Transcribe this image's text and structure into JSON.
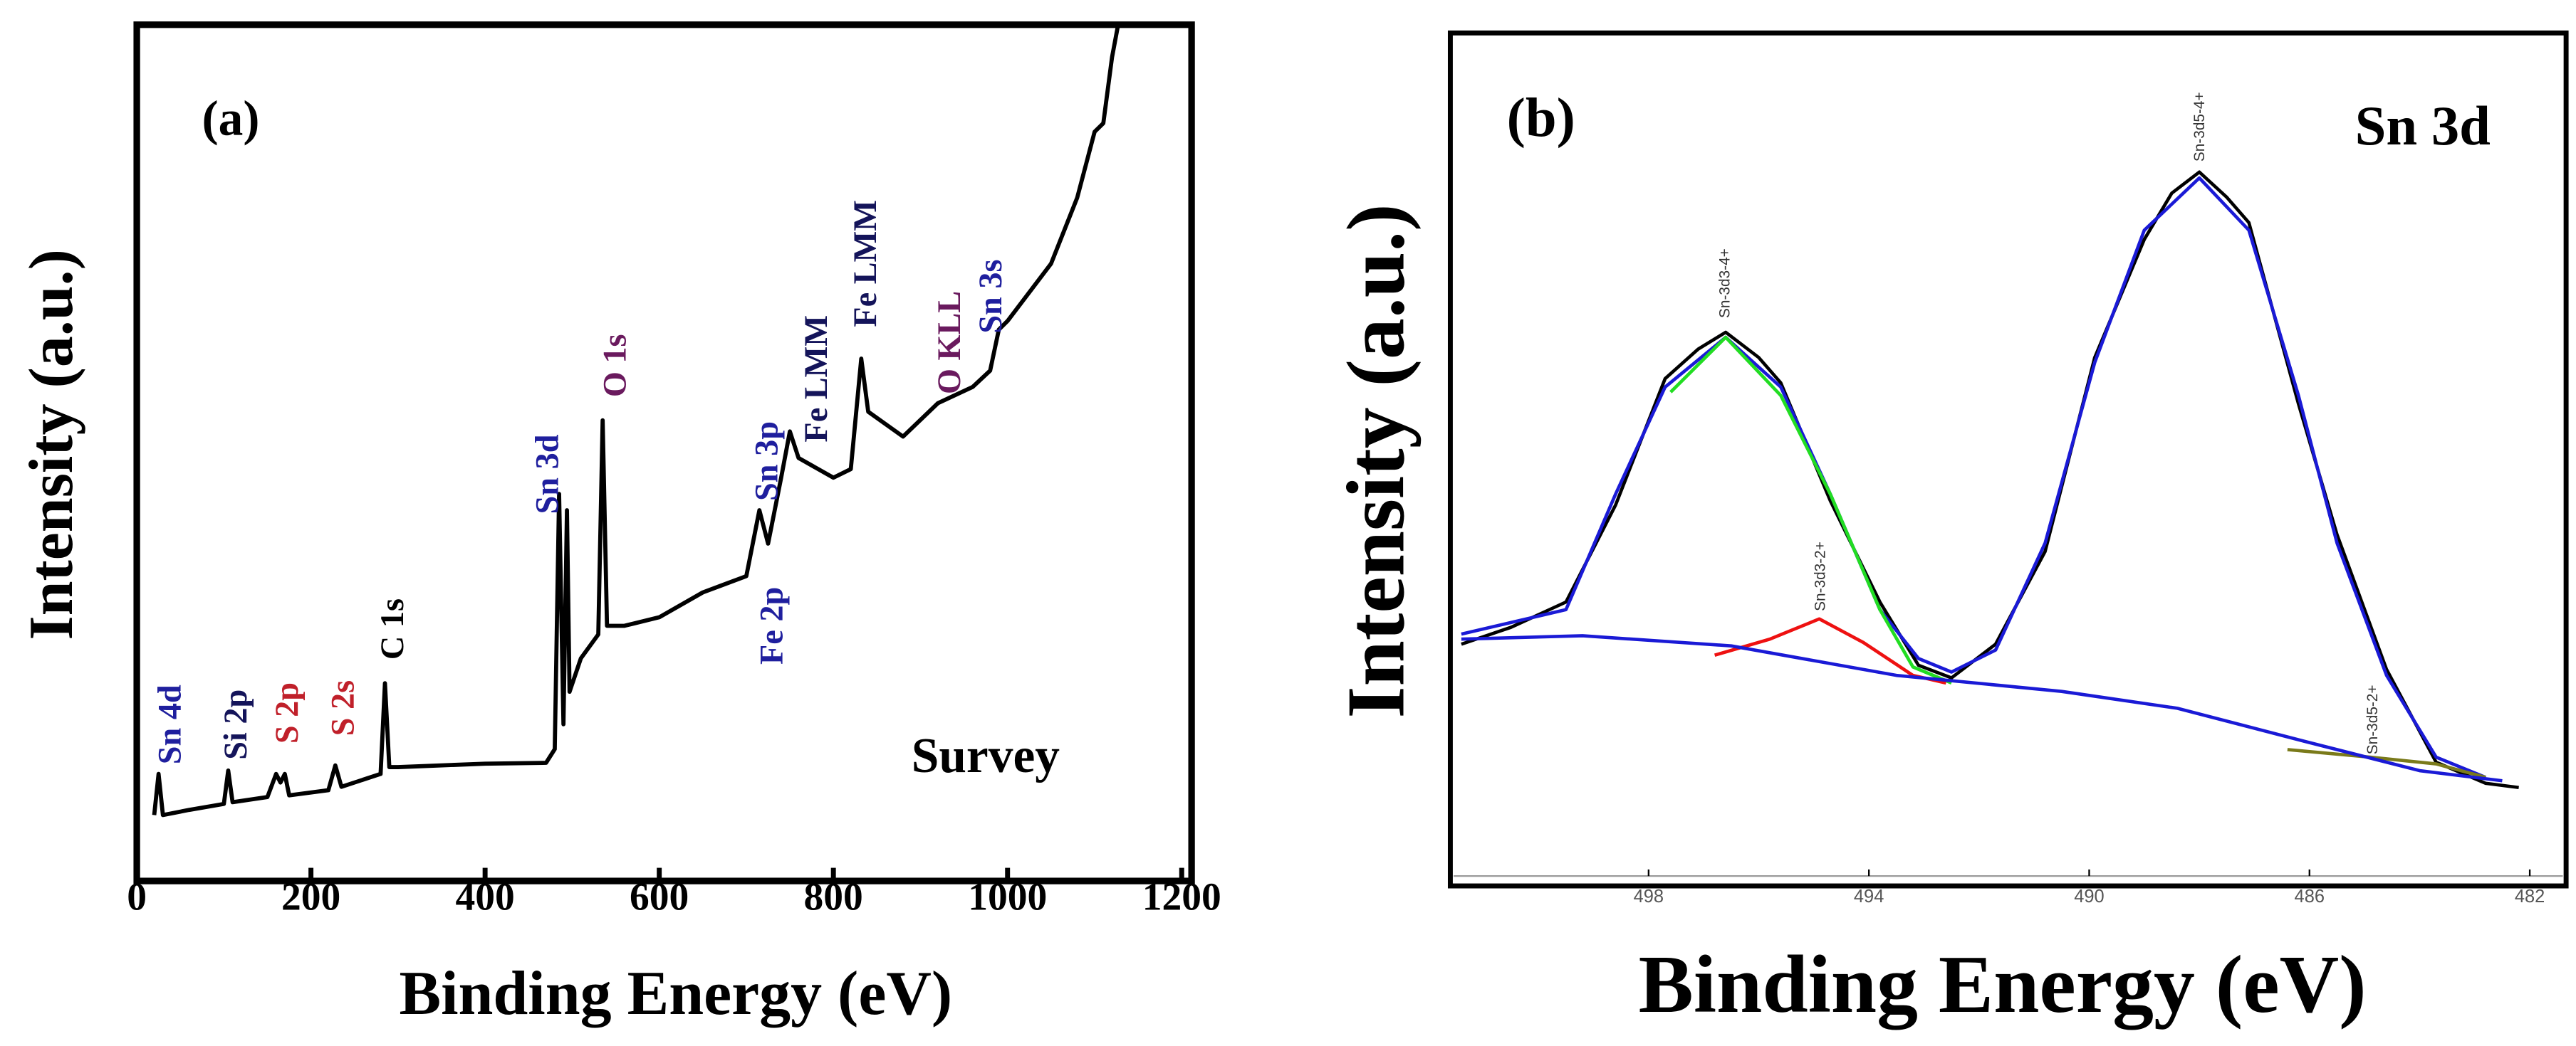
{
  "chart_data": [
    {
      "type": "line",
      "x_label": "Binding Energy (eV)",
      "y_label": "Intensity (a.u.)",
      "xlim": [
        0,
        1200
      ],
      "xticks": [
        0,
        200,
        400,
        600,
        800,
        1000,
        1200
      ],
      "ylim": [
        0,
        100
      ],
      "series": [
        {
          "color": "#000000",
          "x": [
            20,
            25,
            30,
            60,
            100,
            105,
            110,
            150,
            160,
            165,
            170,
            175,
            220,
            228,
            235,
            280,
            285,
            290,
            300,
            400,
            470,
            480,
            485,
            490,
            494,
            497,
            510,
            530,
            535,
            540,
            560,
            600,
            650,
            700,
            715,
            725,
            740,
            750,
            760,
            800,
            820,
            832,
            840,
            880,
            920,
            960,
            980,
            990,
            1000,
            1050,
            1080,
            1100,
            1110,
            1120,
            1127
          ],
          "values": [
            7.7,
            12.5,
            7.7,
            8.3,
            9.0,
            12.9,
            9.2,
            9.8,
            12.5,
            11.5,
            12.5,
            10.0,
            10.6,
            13.5,
            11.0,
            12.5,
            23.1,
            13.3,
            13.3,
            13.7,
            13.8,
            15.4,
            45.2,
            18.3,
            43.3,
            22.1,
            26.0,
            28.8,
            53.8,
            29.8,
            29.8,
            30.8,
            33.7,
            35.6,
            43.3,
            39.4,
            47.1,
            52.5,
            49.4,
            47.1,
            48.1,
            61.0,
            54.8,
            51.9,
            55.8,
            57.7,
            59.6,
            64.4,
            65.4,
            72.1,
            79.8,
            87.5,
            88.5,
            96.2,
            100
          ]
        }
      ],
      "annotations": [
        {
          "text": "(a)",
          "color": "#000000"
        },
        {
          "text": "Survey",
          "color": "#000000"
        },
        {
          "text": "Sn 4d",
          "color": "#1f1f9e"
        },
        {
          "text": "Si 2p",
          "color": "#14145a"
        },
        {
          "text": "S 2p",
          "color": "#c0202a"
        },
        {
          "text": "S 2s",
          "color": "#c0202a"
        },
        {
          "text": "C 1s",
          "color": "#000000"
        },
        {
          "text": "Sn 3d",
          "color": "#1f1f9e"
        },
        {
          "text": "O 1s",
          "color": "#6a1a5e"
        },
        {
          "text": "Sn 3p",
          "color": "#1f1f9e"
        },
        {
          "text": "Fe 2p",
          "color": "#1f1f9e"
        },
        {
          "text": "Fe LMM",
          "color": "#14145a"
        },
        {
          "text": "Fe LMM",
          "color": "#14145a"
        },
        {
          "text": "O KLL",
          "color": "#6a1a5e"
        },
        {
          "text": "Sn 3s",
          "color": "#1f1f9e"
        }
      ]
    },
    {
      "type": "line",
      "x_label": "Binding Energy (eV)",
      "y_label": "Intensity (a.u.)",
      "xlim": [
        501.6,
        481.4
      ],
      "xticks": [
        498,
        494,
        490,
        486,
        482
      ],
      "ylim": [
        0,
        100
      ],
      "series": [
        {
          "color": "#000000",
          "x": [
            501.4,
            500.5,
            499.5,
            498.6,
            497.7,
            497.1,
            496.6,
            496.0,
            495.6,
            494.7,
            493.8,
            493.1,
            492.5,
            491.7,
            490.8,
            489.9,
            489.0,
            488.5,
            488.0,
            487.5,
            487.1,
            486.2,
            485.5,
            484.6,
            483.7,
            482.8,
            482.2
          ],
          "values": [
            27.5,
            29.5,
            32.5,
            44.0,
            59.0,
            62.5,
            64.5,
            61.5,
            58.5,
            44.5,
            32.5,
            25.0,
            23.5,
            27.5,
            38.5,
            61.5,
            75.5,
            81.0,
            83.5,
            80.5,
            77.5,
            56.0,
            40.5,
            24.5,
            13.5,
            11.0,
            10.5
          ]
        },
        {
          "color": "#1a1ad6",
          "x": [
            501.4,
            499.5,
            498.6,
            497.7,
            496.6,
            495.6,
            494.7,
            493.8,
            493.1,
            492.5,
            491.7,
            490.8,
            489.9,
            489.0,
            488.0,
            487.1,
            486.2,
            485.5,
            484.6,
            483.7,
            482.8
          ],
          "values": [
            28.7,
            31.6,
            45.3,
            58.0,
            63.9,
            58.0,
            45.3,
            31.6,
            25.8,
            24.2,
            26.8,
            39.5,
            60.9,
            76.6,
            82.8,
            76.6,
            57.0,
            39.5,
            23.8,
            14.1,
            11.7
          ]
        },
        {
          "color": "#22dd22",
          "x": [
            497.6,
            496.6,
            495.6,
            494.7,
            493.8,
            493.2,
            492.5
          ],
          "values": [
            57.4,
            63.9,
            57.0,
            45.3,
            31.6,
            24.8,
            22.9
          ]
        },
        {
          "color": "#ee1111",
          "x": [
            496.8,
            495.8,
            494.9,
            494.1,
            493.2,
            492.6
          ],
          "values": [
            26.2,
            28.1,
            30.5,
            27.7,
            23.8,
            22.9
          ]
        },
        {
          "color": "#7a7a1a",
          "x": [
            486.4,
            484.9,
            483.7,
            482.8
          ],
          "values": [
            15.0,
            14.1,
            13.3,
            11.7
          ]
        },
        {
          "color": "#1a1ad6",
          "x": [
            501.4,
            499.2,
            496.5,
            493.5,
            490.5,
            488.4,
            486.1,
            484.0,
            482.5
          ],
          "values": [
            28.1,
            28.5,
            27.3,
            23.8,
            21.9,
            19.9,
            16.0,
            12.5,
            11.3
          ]
        }
      ],
      "annotations": [
        {
          "text": "(b)",
          "color": "#000000"
        },
        {
          "text": "Sn 3d",
          "color": "#000000"
        },
        {
          "text": "Sn-3d3-4+",
          "color": "#333333"
        },
        {
          "text": "Sn-3d3-2+",
          "color": "#333333"
        },
        {
          "text": "Sn-3d5-4+",
          "color": "#333333"
        },
        {
          "text": "Sn-3d5-2+",
          "color": "#333333"
        }
      ]
    }
  ]
}
